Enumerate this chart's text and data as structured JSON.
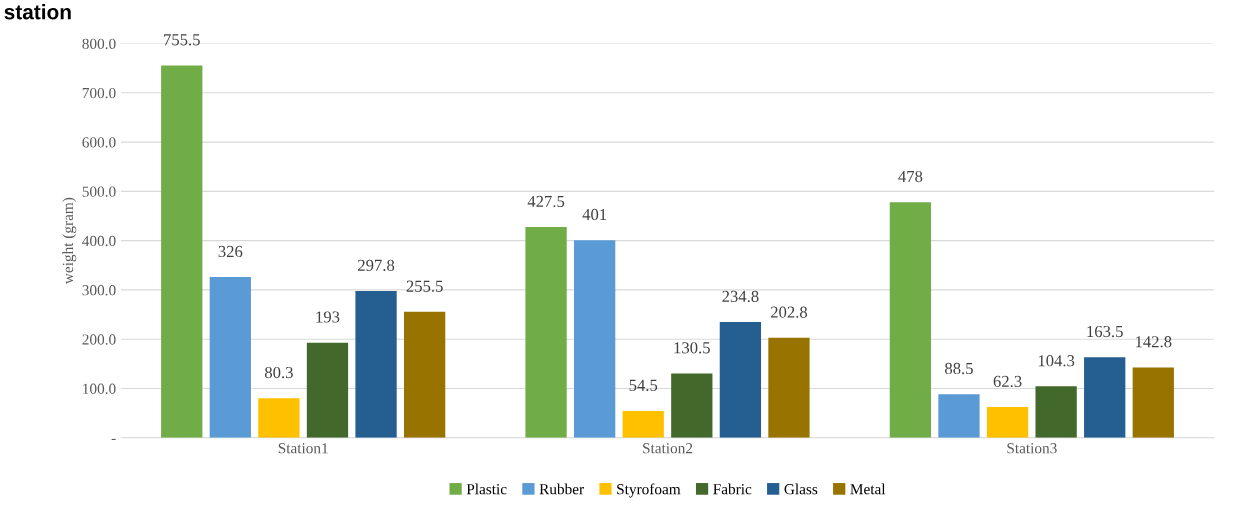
{
  "chart_data": {
    "type": "bar",
    "title": "station",
    "ylabel": "weight (gram)",
    "categories": [
      "Station1",
      "Station2",
      "Station3"
    ],
    "series": [
      {
        "name": "Plastic",
        "color": "#70ad47",
        "values": [
          755.5,
          427.5,
          478
        ]
      },
      {
        "name": "Rubber",
        "color": "#5b9bd5",
        "values": [
          326,
          401,
          88.5
        ]
      },
      {
        "name": "Styrofoam",
        "color": "#ffc000",
        "values": [
          80.3,
          54.5,
          62.3
        ]
      },
      {
        "name": "Fabric",
        "color": "#43682b",
        "values": [
          193,
          130.5,
          104.3
        ]
      },
      {
        "name": "Glass",
        "color": "#255e91",
        "values": [
          297.8,
          234.8,
          163.5
        ]
      },
      {
        "name": "Metal",
        "color": "#997300",
        "values": [
          255.5,
          202.8,
          142.8
        ]
      }
    ],
    "ylim": [
      0,
      800
    ],
    "yticks": [
      {
        "value": 0,
        "label": "-"
      },
      {
        "value": 100,
        "label": "100.0"
      },
      {
        "value": 200,
        "label": "200.0"
      },
      {
        "value": 300,
        "label": "300.0"
      },
      {
        "value": 400,
        "label": "400.0"
      },
      {
        "value": 500,
        "label": "500.0"
      },
      {
        "value": 600,
        "label": "600.0"
      },
      {
        "value": 700,
        "label": "700.0"
      },
      {
        "value": 800,
        "label": "800.0"
      }
    ],
    "grid": "y",
    "legend": "bottom",
    "data_labels": true
  }
}
